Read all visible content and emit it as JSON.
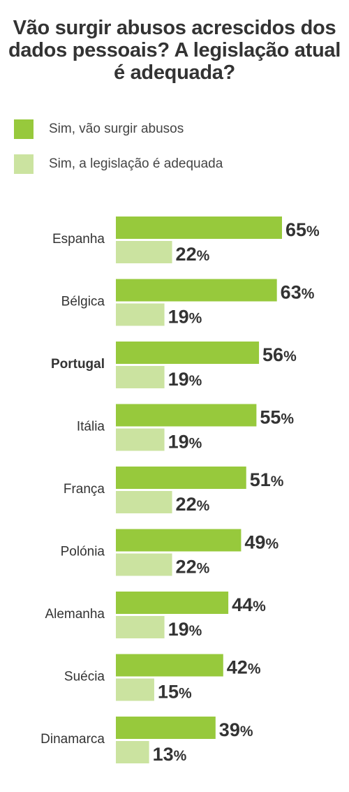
{
  "title": "Vão surgir abusos acrescidos dos dados pessoais? A legislação atual é adequada?",
  "colors": {
    "series_1": "#97c93c",
    "series_2": "#cbe3a0",
    "text": "#333333"
  },
  "legend": [
    {
      "label": "Sim, vão surgir abusos"
    },
    {
      "label": "Sim, a legislação é adequada"
    }
  ],
  "chart_data": {
    "type": "bar",
    "orientation": "horizontal",
    "title": "Vão surgir abusos acrescidos dos dados pessoais? A legislação atual é adequada?",
    "categories": [
      "Espanha",
      "Bélgica",
      "Portugal",
      "Itália",
      "França",
      "Polónia",
      "Alemanha",
      "Suécia",
      "Dinamarca"
    ],
    "highlighted_category": "Portugal",
    "series": [
      {
        "name": "Sim, vão surgir abusos",
        "values": [
          65,
          63,
          56,
          55,
          51,
          49,
          44,
          42,
          39
        ]
      },
      {
        "name": "Sim, a legislação é adequada",
        "values": [
          22,
          19,
          19,
          19,
          22,
          22,
          19,
          15,
          13
        ]
      }
    ],
    "value_suffix": "%",
    "xlim": [
      0,
      65
    ],
    "grid": false,
    "legend_position": "top-left"
  }
}
